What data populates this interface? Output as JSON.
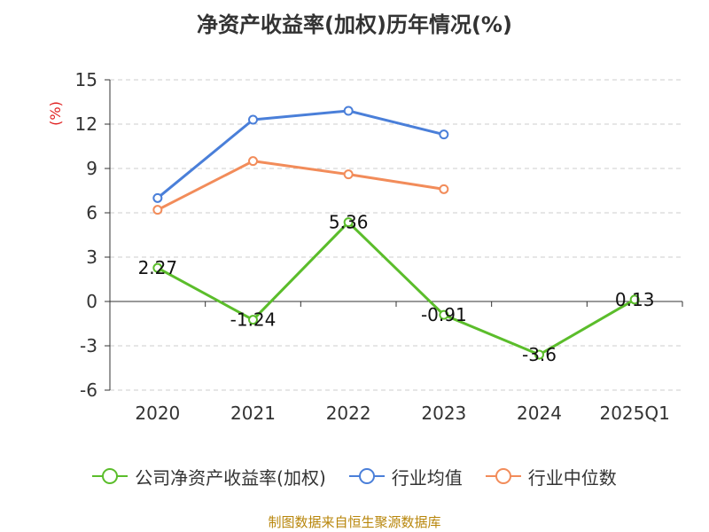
{
  "title": "净资产收益率(加权)历年情况(%)",
  "source": "制图数据来自恒生聚源数据库",
  "chart_data": {
    "type": "line",
    "categories": [
      "2020",
      "2021",
      "2022",
      "2023",
      "2024",
      "2025Q1"
    ],
    "ylabel": "(%)",
    "ylim": [
      -6,
      15
    ],
    "yticks": [
      -6,
      -3,
      0,
      3,
      6,
      9,
      12,
      15
    ],
    "grid": true,
    "legend_position": "bottom",
    "series": [
      {
        "name": "公司净资产收益率(加权)",
        "color": "#5bbd2b",
        "values": [
          2.27,
          -1.24,
          5.36,
          -0.91,
          -3.6,
          0.13
        ],
        "labels": [
          "2.27",
          "-1.24",
          "5.36",
          "-0.91",
          "-3.6",
          "0.13"
        ],
        "show_labels": true
      },
      {
        "name": "行业均值",
        "color": "#4a7fd9",
        "values": [
          7.0,
          12.3,
          12.9,
          11.3,
          null,
          null
        ],
        "show_labels": false
      },
      {
        "name": "行业中位数",
        "color": "#f28c5a",
        "values": [
          6.2,
          9.5,
          8.6,
          7.6,
          null,
          null
        ],
        "show_labels": false
      }
    ]
  }
}
